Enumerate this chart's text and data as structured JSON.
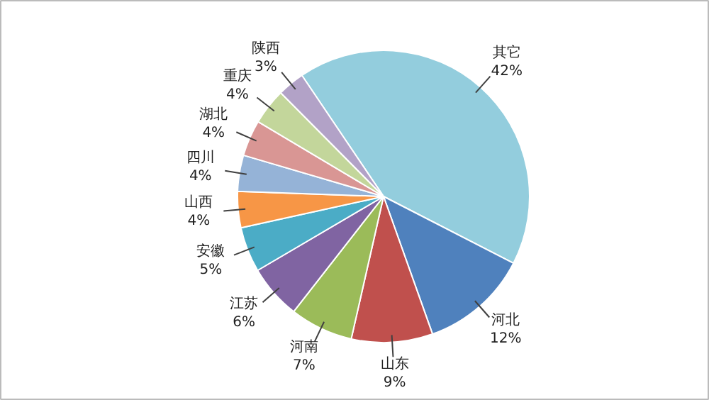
{
  "chart_data": {
    "type": "pie",
    "categories": [
      "其它",
      "河北",
      "山东",
      "河南",
      "江苏",
      "安徽",
      "山西",
      "四川",
      "湖北",
      "重庆",
      "陕西"
    ],
    "values": [
      42,
      12,
      9,
      7,
      6,
      5,
      4,
      4,
      4,
      4,
      3
    ],
    "value_labels": [
      "42%",
      "12%",
      "9%",
      "7%",
      "6%",
      "5%",
      "4%",
      "4%",
      "4%",
      "4%",
      "3%"
    ],
    "colors": [
      "#93cddd",
      "#4f81bd",
      "#c0504d",
      "#9bbb59",
      "#8064a2",
      "#4bacc6",
      "#f79646",
      "#95b3d7",
      "#d99694",
      "#c3d69b",
      "#b2a2c7"
    ]
  }
}
